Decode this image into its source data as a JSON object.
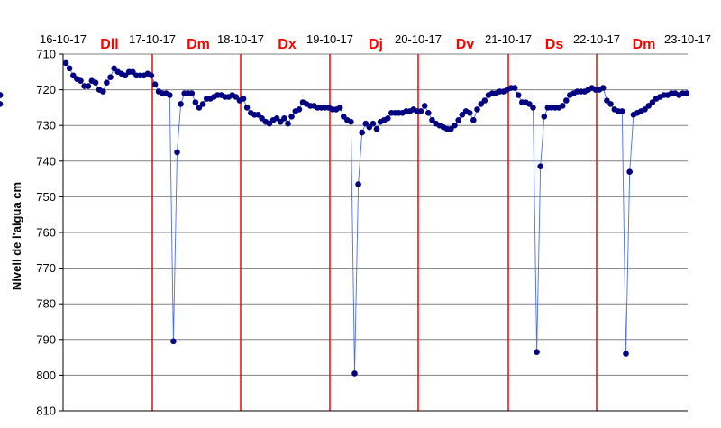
{
  "chart_data": {
    "type": "scatter",
    "ylabel": "Nivell de l'aigua cm",
    "yaxis_reversed": true,
    "ylim": [
      710,
      810
    ],
    "yticks": [
      710,
      720,
      730,
      740,
      750,
      760,
      770,
      780,
      790,
      800,
      810
    ],
    "grid": "horizontal",
    "date_labels": [
      "16-10-17",
      "17-10-17",
      "18-10-17",
      "19-10-17",
      "20-10-17",
      "21-10-17",
      "22-10-17",
      "23-10-17"
    ],
    "day_labels": [
      "Dll",
      "Dm",
      "Dx",
      "Dj",
      "Dv",
      "Ds",
      "Dm"
    ],
    "colors": {
      "points": "#000080",
      "line": "#4d6bff",
      "day_separator": "#ff0000",
      "day_label": "#ff0000",
      "grid": "#808080"
    },
    "series": [
      {
        "values": [
          712.5,
          714,
          716,
          717,
          717.5,
          719,
          719,
          717.5,
          718,
          720,
          720.5,
          718,
          716.5,
          714,
          715,
          715.5,
          716,
          715,
          715,
          716,
          716,
          716,
          715.5,
          716,
          718.5,
          720.5,
          721,
          721,
          721.5,
          790.5,
          737.5,
          724,
          721,
          721,
          721,
          723.5,
          725,
          724,
          722.5,
          722.5,
          722,
          721.5,
          721.5,
          722,
          722,
          721.5,
          722,
          723,
          722.5,
          725,
          726.5,
          727,
          727,
          728,
          729,
          729.5,
          728.5,
          728,
          729,
          728,
          729.5,
          727.5,
          726,
          725.5,
          723.5,
          724,
          724.5,
          724.5,
          725,
          725,
          725,
          725,
          725.5,
          725.5,
          725,
          727.5,
          728.5,
          729,
          799.5,
          746.5,
          732,
          729.5,
          730.5,
          729.5,
          731,
          729,
          728.5,
          728,
          726.5,
          726.5,
          726.5,
          726.5,
          726,
          726,
          725.5,
          726,
          726,
          724.5,
          726.5,
          728.5,
          729.5,
          730,
          730.5,
          731,
          731,
          730,
          728.5,
          727,
          726,
          726.5,
          728.5,
          725.5,
          724,
          723,
          721.5,
          721,
          721,
          720.5,
          720.5,
          720,
          719.5,
          719.5,
          721.5,
          723.5,
          723.5,
          724,
          725,
          793.5,
          741.5,
          727.5,
          725,
          725,
          725,
          725,
          724.5,
          723,
          721.5,
          721,
          720.5,
          720.5,
          720.5,
          720,
          719.5,
          720,
          720,
          719.5,
          723,
          724,
          725.5,
          726,
          726,
          794,
          743,
          727,
          726.5,
          726,
          725.5,
          724.5,
          723.5,
          722.5,
          722,
          721.5,
          721.5,
          721,
          721,
          721.5,
          721,
          721,
          721.5,
          721.5,
          721.5,
          724
        ]
      }
    ]
  }
}
